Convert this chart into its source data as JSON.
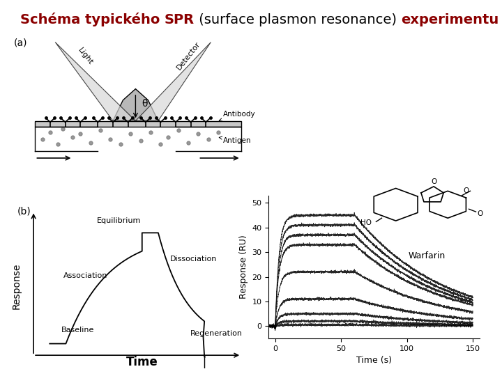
{
  "title_parts": [
    {
      "text": "Schéma typického ",
      "color": "#8B0000",
      "bold": true
    },
    {
      "text": "SPR",
      "color": "#8B0000",
      "bold": true
    },
    {
      "text": " (surface plasmon resonance) ",
      "color": "#000000",
      "bold": false
    },
    {
      "text": "experimentu",
      "color": "#8B0000",
      "bold": true
    }
  ],
  "title_fontsize": 14,
  "bg_color": "#ffffff",
  "panel_a_label": "(a)",
  "panel_b_label": "(b)",
  "panel_b_xlabel": "Time",
  "panel_b_ylabel": "Response",
  "panel_b_annotations": [
    {
      "text": "Baseline"
    },
    {
      "text": "Association"
    },
    {
      "text": "Equilibrium"
    },
    {
      "text": "Dissociation"
    },
    {
      "text": "Regeneration"
    }
  ],
  "spr_ylabel": "Response (RU)",
  "spr_xlabel": "Time (s)",
  "spr_yticks": [
    0,
    10,
    20,
    30,
    40,
    50
  ],
  "spr_xticks": [
    0,
    50,
    100,
    150
  ],
  "warfarin_label": "Warfarin",
  "antibody_label": "Antibody",
  "antigen_label": "Antigen",
  "light_label": "Light",
  "detector_label": "Detector",
  "theta_label": "θ"
}
